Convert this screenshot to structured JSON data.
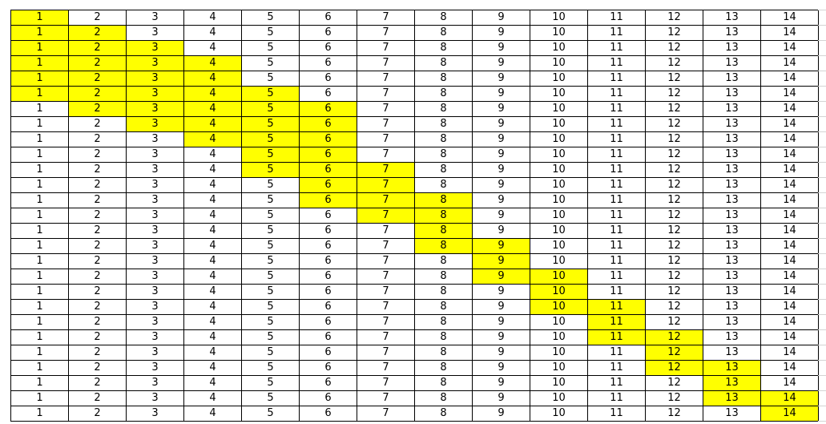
{
  "sheet": {
    "highlight_color": "#ffff00",
    "rows": [
      {
        "values": [
          "1",
          "2",
          "3",
          "4",
          "5",
          "6",
          "7",
          "8",
          "9",
          "10",
          "11",
          "12",
          "13",
          "14"
        ],
        "highlighted": [
          1
        ]
      },
      {
        "values": [
          "1",
          "2",
          "3",
          "4",
          "5",
          "6",
          "7",
          "8",
          "9",
          "10",
          "11",
          "12",
          "13",
          "14"
        ],
        "highlighted": [
          1,
          2
        ]
      },
      {
        "values": [
          "1",
          "2",
          "3",
          "4",
          "5",
          "6",
          "7",
          "8",
          "9",
          "10",
          "11",
          "12",
          "13",
          "14"
        ],
        "highlighted": [
          1,
          2,
          3
        ]
      },
      {
        "values": [
          "1",
          "2",
          "3",
          "4",
          "5",
          "6",
          "7",
          "8",
          "9",
          "10",
          "11",
          "12",
          "13",
          "14"
        ],
        "highlighted": [
          1,
          2,
          3,
          4
        ]
      },
      {
        "values": [
          "1",
          "2",
          "3",
          "4",
          "5",
          "6",
          "7",
          "8",
          "9",
          "10",
          "11",
          "12",
          "13",
          "14"
        ],
        "highlighted": [
          1,
          2,
          3,
          4
        ]
      },
      {
        "values": [
          "1",
          "2",
          "3",
          "4",
          "5",
          "6",
          "7",
          "8",
          "9",
          "10",
          "11",
          "12",
          "13",
          "14"
        ],
        "highlighted": [
          1,
          2,
          3,
          4,
          5
        ]
      },
      {
        "values": [
          "1",
          "2",
          "3",
          "4",
          "5",
          "6",
          "7",
          "8",
          "9",
          "10",
          "11",
          "12",
          "13",
          "14"
        ],
        "highlighted": [
          2,
          3,
          4,
          5,
          6
        ]
      },
      {
        "values": [
          "1",
          "2",
          "3",
          "4",
          "5",
          "6",
          "7",
          "8",
          "9",
          "10",
          "11",
          "12",
          "13",
          "14"
        ],
        "highlighted": [
          3,
          4,
          5,
          6
        ]
      },
      {
        "values": [
          "1",
          "2",
          "3",
          "4",
          "5",
          "6",
          "7",
          "8",
          "9",
          "10",
          "11",
          "12",
          "13",
          "14"
        ],
        "highlighted": [
          4,
          5,
          6
        ]
      },
      {
        "values": [
          "1",
          "2",
          "3",
          "4",
          "5",
          "6",
          "7",
          "8",
          "9",
          "10",
          "11",
          "12",
          "13",
          "14"
        ],
        "highlighted": [
          5,
          6
        ]
      },
      {
        "values": [
          "1",
          "2",
          "3",
          "4",
          "5",
          "6",
          "7",
          "8",
          "9",
          "10",
          "11",
          "12",
          "13",
          "14"
        ],
        "highlighted": [
          5,
          6,
          7
        ]
      },
      {
        "values": [
          "1",
          "2",
          "3",
          "4",
          "5",
          "6",
          "7",
          "8",
          "9",
          "10",
          "11",
          "12",
          "13",
          "14"
        ],
        "highlighted": [
          6,
          7
        ]
      },
      {
        "values": [
          "1",
          "2",
          "3",
          "4",
          "5",
          "6",
          "7",
          "8",
          "9",
          "10",
          "11",
          "12",
          "13",
          "14"
        ],
        "highlighted": [
          6,
          7,
          8
        ]
      },
      {
        "values": [
          "1",
          "2",
          "3",
          "4",
          "5",
          "6",
          "7",
          "8",
          "9",
          "10",
          "11",
          "12",
          "13",
          "14"
        ],
        "highlighted": [
          7,
          8
        ]
      },
      {
        "values": [
          "1",
          "2",
          "3",
          "4",
          "5",
          "6",
          "7",
          "8",
          "9",
          "10",
          "11",
          "12",
          "13",
          "14"
        ],
        "highlighted": [
          8
        ]
      },
      {
        "values": [
          "1",
          "2",
          "3",
          "4",
          "5",
          "6",
          "7",
          "8",
          "9",
          "10",
          "11",
          "12",
          "13",
          "14"
        ],
        "highlighted": [
          8,
          9
        ]
      },
      {
        "values": [
          "1",
          "2",
          "3",
          "4",
          "5",
          "6",
          "7",
          "8",
          "9",
          "10",
          "11",
          "12",
          "13",
          "14"
        ],
        "highlighted": [
          9
        ]
      },
      {
        "values": [
          "1",
          "2",
          "3",
          "4",
          "5",
          "6",
          "7",
          "8",
          "9",
          "10",
          "11",
          "12",
          "13",
          "14"
        ],
        "highlighted": [
          9,
          10
        ]
      },
      {
        "values": [
          "1",
          "2",
          "3",
          "4",
          "5",
          "6",
          "7",
          "8",
          "9",
          "10",
          "11",
          "12",
          "13",
          "14"
        ],
        "highlighted": [
          10
        ]
      },
      {
        "values": [
          "1",
          "2",
          "3",
          "4",
          "5",
          "6",
          "7",
          "8",
          "9",
          "10",
          "11",
          "12",
          "13",
          "14"
        ],
        "highlighted": [
          10,
          11
        ]
      },
      {
        "values": [
          "1",
          "2",
          "3",
          "4",
          "5",
          "6",
          "7",
          "8",
          "9",
          "10",
          "11",
          "12",
          "13",
          "14"
        ],
        "highlighted": [
          11
        ]
      },
      {
        "values": [
          "1",
          "2",
          "3",
          "4",
          "5",
          "6",
          "7",
          "8",
          "9",
          "10",
          "11",
          "12",
          "13",
          "14"
        ],
        "highlighted": [
          11,
          12
        ]
      },
      {
        "values": [
          "1",
          "2",
          "3",
          "4",
          "5",
          "6",
          "7",
          "8",
          "9",
          "10",
          "11",
          "12",
          "13",
          "14"
        ],
        "highlighted": [
          12
        ]
      },
      {
        "values": [
          "1",
          "2",
          "3",
          "4",
          "5",
          "6",
          "7",
          "8",
          "9",
          "10",
          "11",
          "12",
          "13",
          "14"
        ],
        "highlighted": [
          12,
          13
        ]
      },
      {
        "values": [
          "1",
          "2",
          "3",
          "4",
          "5",
          "6",
          "7",
          "8",
          "9",
          "10",
          "11",
          "12",
          "13",
          "14"
        ],
        "highlighted": [
          13
        ]
      },
      {
        "values": [
          "1",
          "2",
          "3",
          "4",
          "5",
          "6",
          "7",
          "8",
          "9",
          "10",
          "11",
          "12",
          "13",
          "14"
        ],
        "highlighted": [
          13,
          14
        ]
      },
      {
        "values": [
          "1",
          "2",
          "3",
          "4",
          "5",
          "6",
          "7",
          "8",
          "9",
          "10",
          "11",
          "12",
          "13",
          "14"
        ],
        "highlighted": [
          14
        ]
      }
    ]
  }
}
